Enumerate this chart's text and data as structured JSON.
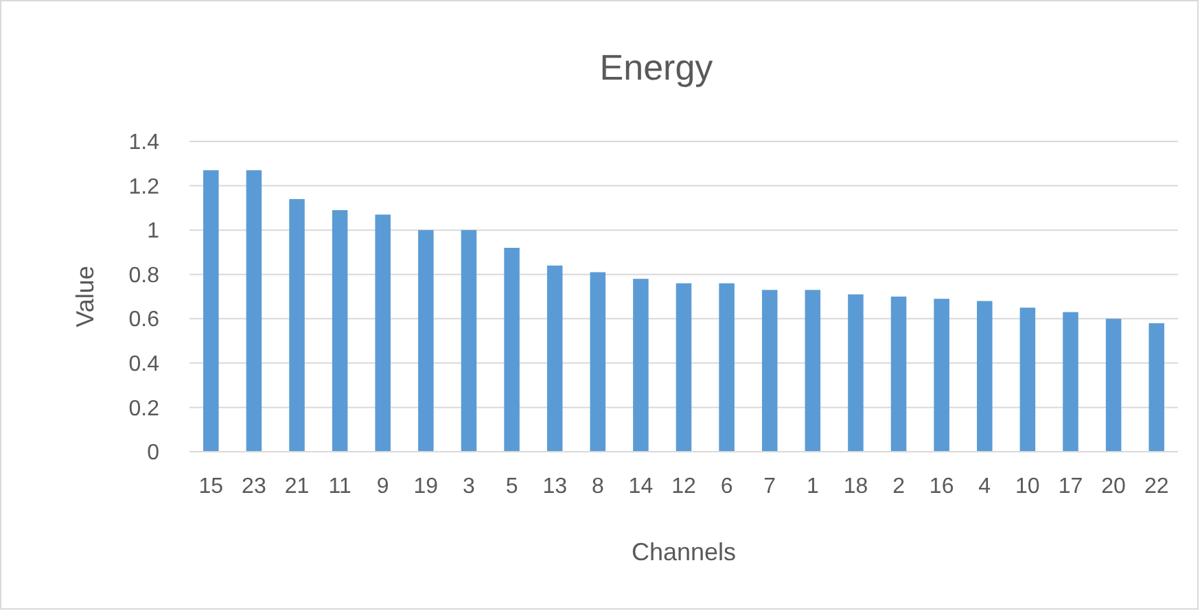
{
  "chart_data": {
    "type": "bar",
    "title": "Energy",
    "xlabel": "Channels",
    "ylabel": "Value",
    "categories": [
      "15",
      "23",
      "21",
      "11",
      "9",
      "19",
      "3",
      "5",
      "13",
      "8",
      "14",
      "12",
      "6",
      "7",
      "1",
      "18",
      "2",
      "16",
      "4",
      "10",
      "17",
      "20",
      "22"
    ],
    "values": [
      1.27,
      1.27,
      1.14,
      1.09,
      1.07,
      1.0,
      1.0,
      0.92,
      0.84,
      0.81,
      0.78,
      0.76,
      0.76,
      0.73,
      0.73,
      0.71,
      0.7,
      0.69,
      0.68,
      0.65,
      0.63,
      0.6,
      0.58
    ],
    "color": "#5b9bd5",
    "ylim": [
      0,
      1.4
    ],
    "yticks": [
      0,
      0.2,
      0.4,
      0.6,
      0.8,
      1,
      1.2,
      1.4
    ],
    "grid": "y"
  }
}
